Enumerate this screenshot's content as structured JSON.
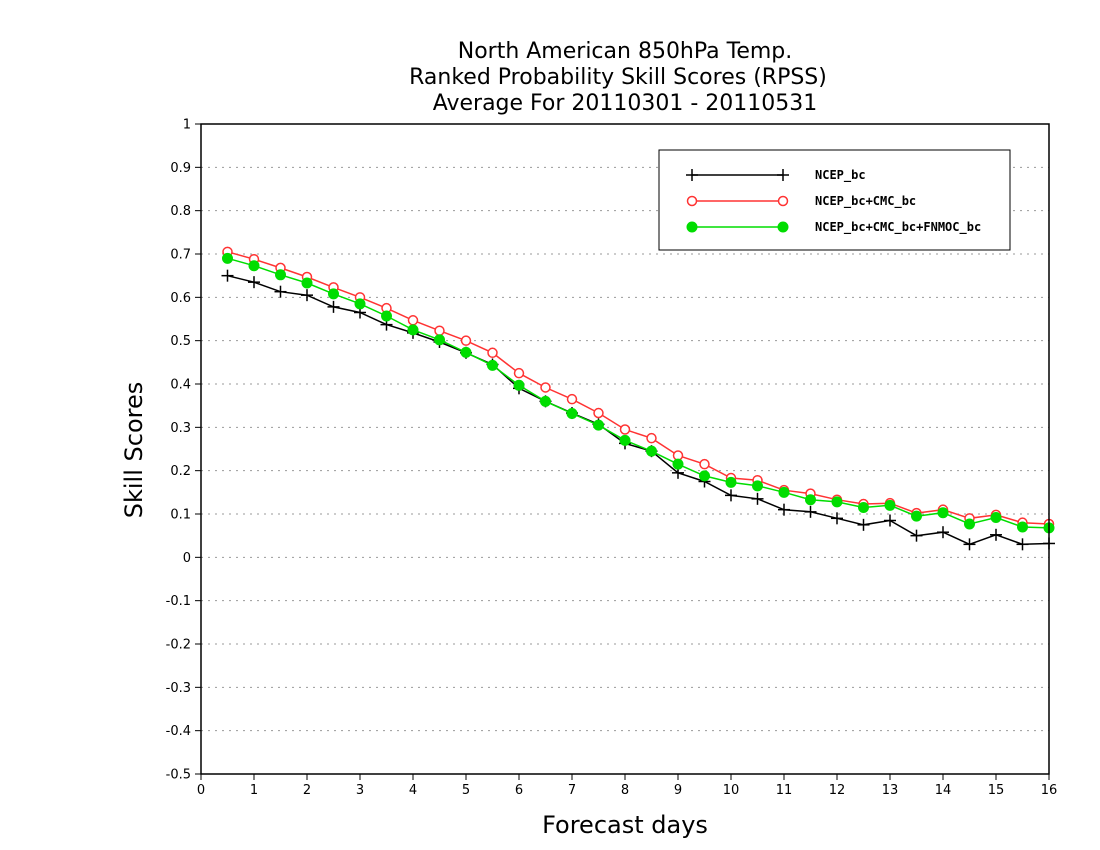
{
  "chart_data": {
    "type": "line",
    "title_lines": [
      "North American 850hPa Temp.",
      "Ranked Probability Skill Scores (RPSS)",
      "Average For 20110301 - 20110531"
    ],
    "xlabel": "Forecast days",
    "ylabel": "Skill Scores",
    "xlim": [
      0,
      16
    ],
    "ylim": [
      -0.5,
      1
    ],
    "x_ticks": [
      0,
      1,
      2,
      3,
      4,
      5,
      6,
      7,
      8,
      9,
      10,
      11,
      12,
      13,
      14,
      15,
      16
    ],
    "x_tick_labels": [
      "0",
      "1",
      "2",
      "3",
      "4",
      "5",
      "6",
      "7",
      "8",
      "9",
      "10",
      "11",
      "12",
      "13",
      "14",
      "15",
      "16"
    ],
    "y_ticks": [
      -0.5,
      -0.4,
      -0.3,
      -0.2,
      -0.1,
      0,
      0.1,
      0.2,
      0.3,
      0.4,
      0.5,
      0.6,
      0.7,
      0.8,
      0.9,
      1
    ],
    "y_tick_labels": [
      "-0.5",
      "-0.4",
      "-0.3",
      "-0.2",
      "-0.1",
      "0",
      "0.1",
      "0.2",
      "0.3",
      "0.4",
      "0.5",
      "0.6",
      "0.7",
      "0.8",
      "0.9",
      "1"
    ],
    "grid": "horizontal dotted",
    "legend_position": "top-right",
    "x": [
      0.5,
      1,
      1.5,
      2,
      2.5,
      3,
      3.5,
      4,
      4.5,
      5,
      5.5,
      6,
      6.5,
      7,
      7.5,
      8,
      8.5,
      9,
      9.5,
      10,
      10.5,
      11,
      11.5,
      12,
      12.5,
      13,
      13.5,
      14,
      14.5,
      15,
      15.5,
      16
    ],
    "series": [
      {
        "name": "NCEP_bc",
        "color": "#000000",
        "marker": "plus",
        "values": [
          0.65,
          0.635,
          0.613,
          0.605,
          0.578,
          0.565,
          0.537,
          0.518,
          0.497,
          0.472,
          0.445,
          0.39,
          0.36,
          0.333,
          0.307,
          0.263,
          0.245,
          0.195,
          0.175,
          0.143,
          0.135,
          0.11,
          0.105,
          0.09,
          0.075,
          0.085,
          0.05,
          0.058,
          0.03,
          0.052,
          0.03,
          0.032
        ]
      },
      {
        "name": "NCEP_bc+CMC_bc",
        "color": "#ff3333",
        "marker": "open-circle",
        "values": [
          0.705,
          0.688,
          0.668,
          0.647,
          0.623,
          0.6,
          0.575,
          0.547,
          0.523,
          0.5,
          0.472,
          0.425,
          0.392,
          0.365,
          0.333,
          0.295,
          0.275,
          0.235,
          0.215,
          0.183,
          0.178,
          0.155,
          0.147,
          0.133,
          0.123,
          0.125,
          0.102,
          0.11,
          0.09,
          0.098,
          0.08,
          0.077
        ]
      },
      {
        "name": "NCEP_bc+CMC_bc+FNMOC_bc",
        "color": "#00dd00",
        "marker": "filled-circle",
        "values": [
          0.69,
          0.673,
          0.652,
          0.633,
          0.608,
          0.585,
          0.557,
          0.525,
          0.502,
          0.473,
          0.443,
          0.397,
          0.36,
          0.332,
          0.305,
          0.27,
          0.245,
          0.215,
          0.188,
          0.173,
          0.165,
          0.15,
          0.133,
          0.128,
          0.115,
          0.12,
          0.095,
          0.103,
          0.077,
          0.092,
          0.07,
          0.068
        ]
      }
    ]
  }
}
